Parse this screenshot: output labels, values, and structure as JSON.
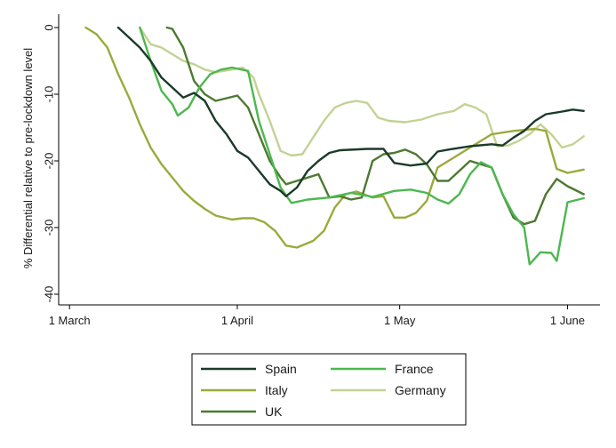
{
  "chart_data": {
    "type": "line",
    "title": "",
    "xlabel": "",
    "ylabel": "% Differential relative to pre-lockdown level",
    "x_ticks": [
      {
        "label": "1 March",
        "value": "2020-03-01"
      },
      {
        "label": "1 April",
        "value": "2020-04-01"
      },
      {
        "label": "1 May",
        "value": "2020-05-01"
      },
      {
        "label": "1 June",
        "value": "2020-06-01"
      }
    ],
    "xlim": [
      "2020-02-28",
      "2020-06-07"
    ],
    "ylim": [
      -40,
      0
    ],
    "y_ticks": [
      {
        "label": "0",
        "value": 0
      },
      {
        "label": "-10",
        "value": -10
      },
      {
        "label": "-20",
        "value": -20
      },
      {
        "label": "-30",
        "value": -30
      },
      {
        "label": "-40",
        "value": -40
      }
    ],
    "grid": false,
    "legend_position": "bottom",
    "series": [
      {
        "name": "Spain",
        "color": "#1b3a2a",
        "points": [
          [
            "2020-03-10",
            0
          ],
          [
            "2020-03-12",
            -1.5
          ],
          [
            "2020-03-14",
            -3
          ],
          [
            "2020-03-16",
            -5
          ],
          [
            "2020-03-18",
            -7.5
          ],
          [
            "2020-03-20",
            -9
          ],
          [
            "2020-03-22",
            -10.5
          ],
          [
            "2020-03-24",
            -9.8
          ],
          [
            "2020-03-26",
            -11
          ],
          [
            "2020-03-28",
            -14
          ],
          [
            "2020-03-30",
            -16
          ],
          [
            "2020-04-01",
            -18.5
          ],
          [
            "2020-04-03",
            -19.5
          ],
          [
            "2020-04-05",
            -21.5
          ],
          [
            "2020-04-07",
            -23.5
          ],
          [
            "2020-04-09",
            -24.5
          ],
          [
            "2020-04-10",
            -25.3
          ],
          [
            "2020-04-12",
            -24
          ],
          [
            "2020-04-14",
            -21.5
          ],
          [
            "2020-04-16",
            -20
          ],
          [
            "2020-04-18",
            -18.8
          ],
          [
            "2020-04-20",
            -18.4
          ],
          [
            "2020-04-25",
            -18.2
          ],
          [
            "2020-04-28",
            -18.2
          ],
          [
            "2020-04-30",
            -20.3
          ],
          [
            "2020-05-03",
            -20.7
          ],
          [
            "2020-05-06",
            -20.4
          ],
          [
            "2020-05-08",
            -18.6
          ],
          [
            "2020-05-10",
            -18.3
          ],
          [
            "2020-05-14",
            -17.8
          ],
          [
            "2020-05-18",
            -17.5
          ],
          [
            "2020-05-20",
            -17.7
          ],
          [
            "2020-05-22",
            -16.5
          ],
          [
            "2020-05-24",
            -15.5
          ],
          [
            "2020-05-26",
            -14
          ],
          [
            "2020-05-28",
            -13
          ],
          [
            "2020-05-31",
            -12.6
          ],
          [
            "2020-06-02",
            -12.3
          ],
          [
            "2020-06-04",
            -12.5
          ]
        ]
      },
      {
        "name": "France",
        "color": "#4cb84f",
        "points": [
          [
            "2020-03-14",
            0
          ],
          [
            "2020-03-16",
            -5
          ],
          [
            "2020-03-18",
            -9.5
          ],
          [
            "2020-03-20",
            -11.5
          ],
          [
            "2020-03-21",
            -13.2
          ],
          [
            "2020-03-23",
            -12
          ],
          [
            "2020-03-25",
            -9
          ],
          [
            "2020-03-27",
            -7
          ],
          [
            "2020-03-29",
            -6.3
          ],
          [
            "2020-03-31",
            -6
          ],
          [
            "2020-04-03",
            -6.5
          ],
          [
            "2020-04-05",
            -14
          ],
          [
            "2020-04-07",
            -19
          ],
          [
            "2020-04-09",
            -24
          ],
          [
            "2020-04-11",
            -26.3
          ],
          [
            "2020-04-14",
            -25.8
          ],
          [
            "2020-04-18",
            -25.5
          ],
          [
            "2020-04-22",
            -24.8
          ],
          [
            "2020-04-26",
            -25.4
          ],
          [
            "2020-04-30",
            -24.5
          ],
          [
            "2020-05-03",
            -24.3
          ],
          [
            "2020-05-06",
            -24.8
          ],
          [
            "2020-05-08",
            -25.8
          ],
          [
            "2020-05-10",
            -26.4
          ],
          [
            "2020-05-12",
            -25
          ],
          [
            "2020-05-14",
            -22
          ],
          [
            "2020-05-16",
            -20.2
          ],
          [
            "2020-05-18",
            -21
          ],
          [
            "2020-05-20",
            -25
          ],
          [
            "2020-05-22",
            -28
          ],
          [
            "2020-05-24",
            -30
          ],
          [
            "2020-05-25",
            -35.5
          ],
          [
            "2020-05-27",
            -33.7
          ],
          [
            "2020-05-29",
            -33.8
          ],
          [
            "2020-05-30",
            -35
          ],
          [
            "2020-06-01",
            -26.2
          ],
          [
            "2020-06-04",
            -25.6
          ]
        ]
      },
      {
        "name": "Italy",
        "color": "#9aaa3c",
        "points": [
          [
            "2020-03-04",
            0
          ],
          [
            "2020-03-06",
            -1
          ],
          [
            "2020-03-08",
            -3
          ],
          [
            "2020-03-10",
            -7
          ],
          [
            "2020-03-12",
            -10.5
          ],
          [
            "2020-03-14",
            -14.5
          ],
          [
            "2020-03-16",
            -18
          ],
          [
            "2020-03-18",
            -20.5
          ],
          [
            "2020-03-20",
            -22.5
          ],
          [
            "2020-03-22",
            -24.5
          ],
          [
            "2020-03-24",
            -26
          ],
          [
            "2020-03-26",
            -27.2
          ],
          [
            "2020-03-28",
            -28.2
          ],
          [
            "2020-03-31",
            -28.8
          ],
          [
            "2020-04-02",
            -28.6
          ],
          [
            "2020-04-04",
            -28.6
          ],
          [
            "2020-04-06",
            -29.2
          ],
          [
            "2020-04-08",
            -30.5
          ],
          [
            "2020-04-10",
            -32.7
          ],
          [
            "2020-04-12",
            -33
          ],
          [
            "2020-04-15",
            -32
          ],
          [
            "2020-04-17",
            -30.5
          ],
          [
            "2020-04-19",
            -27
          ],
          [
            "2020-04-21",
            -25
          ],
          [
            "2020-04-23",
            -24.6
          ],
          [
            "2020-04-26",
            -25.5
          ],
          [
            "2020-04-28",
            -25.3
          ],
          [
            "2020-04-30",
            -28.5
          ],
          [
            "2020-05-02",
            -28.5
          ],
          [
            "2020-05-04",
            -27.8
          ],
          [
            "2020-05-06",
            -26
          ],
          [
            "2020-05-08",
            -21
          ],
          [
            "2020-05-10",
            -20
          ],
          [
            "2020-05-12",
            -19
          ],
          [
            "2020-05-14",
            -18
          ],
          [
            "2020-05-16",
            -17
          ],
          [
            "2020-05-18",
            -16
          ],
          [
            "2020-05-22",
            -15.5
          ],
          [
            "2020-05-26",
            -15.2
          ],
          [
            "2020-05-28",
            -15.5
          ],
          [
            "2020-05-30",
            -21.2
          ],
          [
            "2020-06-01",
            -21.8
          ],
          [
            "2020-06-04",
            -21.3
          ]
        ]
      },
      {
        "name": "Germany",
        "color": "#c3d294",
        "points": [
          [
            "2020-03-14",
            0
          ],
          [
            "2020-03-16",
            -2.5
          ],
          [
            "2020-03-18",
            -3
          ],
          [
            "2020-03-20",
            -4
          ],
          [
            "2020-03-22",
            -5
          ],
          [
            "2020-03-24",
            -5.5
          ],
          [
            "2020-03-26",
            -6.3
          ],
          [
            "2020-03-28",
            -6.7
          ],
          [
            "2020-03-31",
            -6.3
          ],
          [
            "2020-04-02",
            -6
          ],
          [
            "2020-04-04",
            -7.5
          ],
          [
            "2020-04-05",
            -10
          ],
          [
            "2020-04-07",
            -14
          ],
          [
            "2020-04-09",
            -18.5
          ],
          [
            "2020-04-11",
            -19.2
          ],
          [
            "2020-04-13",
            -19
          ],
          [
            "2020-04-15",
            -16.5
          ],
          [
            "2020-04-17",
            -14
          ],
          [
            "2020-04-19",
            -12
          ],
          [
            "2020-04-21",
            -11.3
          ],
          [
            "2020-04-23",
            -11
          ],
          [
            "2020-04-25",
            -11.3
          ],
          [
            "2020-04-27",
            -13.5
          ],
          [
            "2020-04-29",
            -14
          ],
          [
            "2020-05-02",
            -14.2
          ],
          [
            "2020-05-05",
            -13.8
          ],
          [
            "2020-05-08",
            -13
          ],
          [
            "2020-05-11",
            -12.5
          ],
          [
            "2020-05-13",
            -11.5
          ],
          [
            "2020-05-15",
            -12
          ],
          [
            "2020-05-17",
            -13
          ],
          [
            "2020-05-19",
            -17.8
          ],
          [
            "2020-05-21",
            -17.7
          ],
          [
            "2020-05-23",
            -17
          ],
          [
            "2020-05-25",
            -16
          ],
          [
            "2020-05-27",
            -14.5
          ],
          [
            "2020-05-29",
            -16
          ],
          [
            "2020-05-31",
            -18
          ],
          [
            "2020-06-02",
            -17.5
          ],
          [
            "2020-06-04",
            -16.3
          ]
        ]
      },
      {
        "name": "UK",
        "color": "#4d7a31",
        "points": [
          [
            "2020-03-19",
            0
          ],
          [
            "2020-03-20",
            -0.2
          ],
          [
            "2020-03-22",
            -3
          ],
          [
            "2020-03-24",
            -8
          ],
          [
            "2020-03-26",
            -10
          ],
          [
            "2020-03-28",
            -11
          ],
          [
            "2020-03-30",
            -10.6
          ],
          [
            "2020-04-01",
            -10.2
          ],
          [
            "2020-04-03",
            -12
          ],
          [
            "2020-04-05",
            -16
          ],
          [
            "2020-04-07",
            -20
          ],
          [
            "2020-04-09",
            -22.5
          ],
          [
            "2020-04-10",
            -23.5
          ],
          [
            "2020-04-12",
            -23
          ],
          [
            "2020-04-14",
            -22.5
          ],
          [
            "2020-04-16",
            -22
          ],
          [
            "2020-04-18",
            -25.5
          ],
          [
            "2020-04-20",
            -25.3
          ],
          [
            "2020-04-22",
            -25.8
          ],
          [
            "2020-04-24",
            -25.5
          ],
          [
            "2020-04-26",
            -20
          ],
          [
            "2020-04-28",
            -19
          ],
          [
            "2020-04-30",
            -18.8
          ],
          [
            "2020-05-02",
            -18.3
          ],
          [
            "2020-05-04",
            -19
          ],
          [
            "2020-05-06",
            -20.5
          ],
          [
            "2020-05-08",
            -23
          ],
          [
            "2020-05-10",
            -23
          ],
          [
            "2020-05-12",
            -21.5
          ],
          [
            "2020-05-14",
            -20
          ],
          [
            "2020-05-16",
            -20.5
          ],
          [
            "2020-05-18",
            -21
          ],
          [
            "2020-05-20",
            -25
          ],
          [
            "2020-05-22",
            -28.5
          ],
          [
            "2020-05-24",
            -29.5
          ],
          [
            "2020-05-26",
            -29
          ],
          [
            "2020-05-28",
            -25
          ],
          [
            "2020-05-30",
            -22.7
          ],
          [
            "2020-06-01",
            -23.8
          ],
          [
            "2020-06-04",
            -25
          ]
        ]
      }
    ]
  }
}
